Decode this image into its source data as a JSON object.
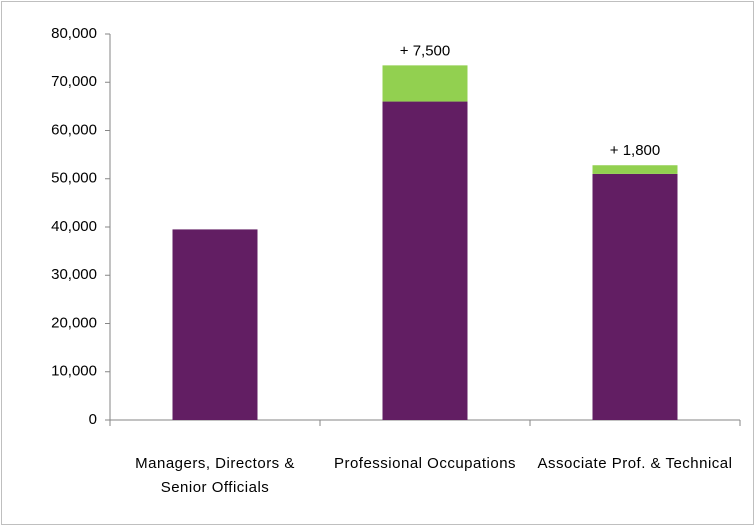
{
  "chart_data": {
    "type": "stacked_bar",
    "categories": [
      "Managers, Directors & Senior Officials",
      "Professional Occupations",
      "Associate Prof. & Technical"
    ],
    "series": [
      {
        "color": "#621e63",
        "values": [
          39500,
          66000,
          51000
        ]
      },
      {
        "color": "#92d050",
        "values": [
          null,
          7500,
          1800
        ],
        "value_labels": [
          null,
          "+ 7,500",
          "+ 1,800"
        ]
      }
    ],
    "ylim": [
      0,
      80000
    ],
    "yticks": [
      0,
      {
        "value": 10000,
        "label": "10,000"
      },
      {
        "value": 20000,
        "label": "20,000"
      },
      {
        "value": 30000,
        "label": "30,000"
      },
      {
        "value": 40000,
        "label": "40,000"
      },
      {
        "value": 50000,
        "label": "50,000"
      },
      {
        "value": 60000,
        "label": "60,000"
      },
      {
        "value": 70000,
        "label": "70,000"
      },
      {
        "value": 80000,
        "label": "80,000"
      }
    ],
    "grid": false
  }
}
